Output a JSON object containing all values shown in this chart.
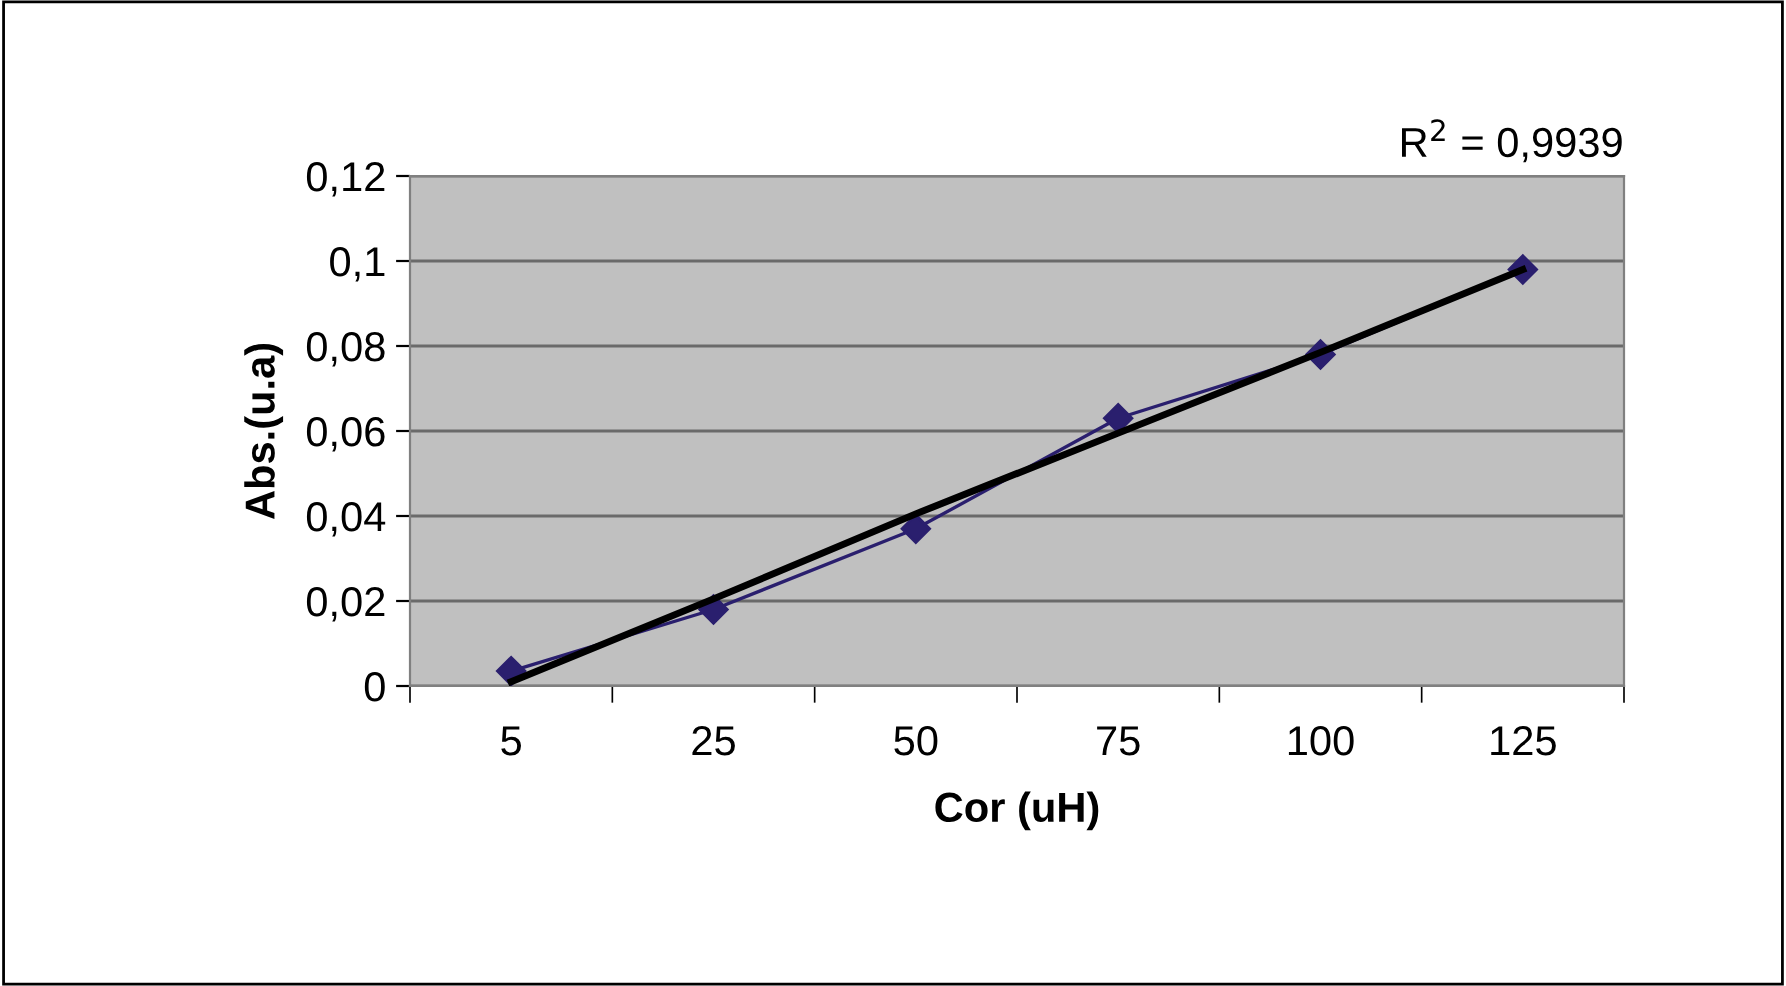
{
  "chart_data": {
    "type": "line",
    "xlabel": "Cor (uH)",
    "ylabel": "Abs.(u.a)",
    "categories": [
      "5",
      "25",
      "50",
      "75",
      "100",
      "125"
    ],
    "series": [
      {
        "color": "#2a1f6e",
        "marker": "diamond",
        "values": [
          0.0035,
          0.018,
          0.037,
          0.063,
          0.078,
          0.098
        ]
      },
      {
        "color": "#000000",
        "marker": "none",
        "values": [
          0.001,
          0.0205,
          0.0405,
          0.0595,
          0.0785,
          0.098
        ]
      }
    ],
    "ylim": [
      0,
      0.12
    ],
    "yticks": [
      0,
      {
        "value": 0.02,
        "label": "0,02"
      },
      {
        "value": 0.04,
        "label": "0,04"
      },
      {
        "value": 0.06,
        "label": "0,06"
      },
      {
        "value": 0.08,
        "label": "0,08"
      },
      {
        "value": 0.1,
        "label": "0,1"
      },
      {
        "value": 0.12,
        "label": "0,12"
      }
    ],
    "grid": "y",
    "legend": false,
    "annotations": [
      "R$^{2}$ = 0,9939"
    ]
  }
}
